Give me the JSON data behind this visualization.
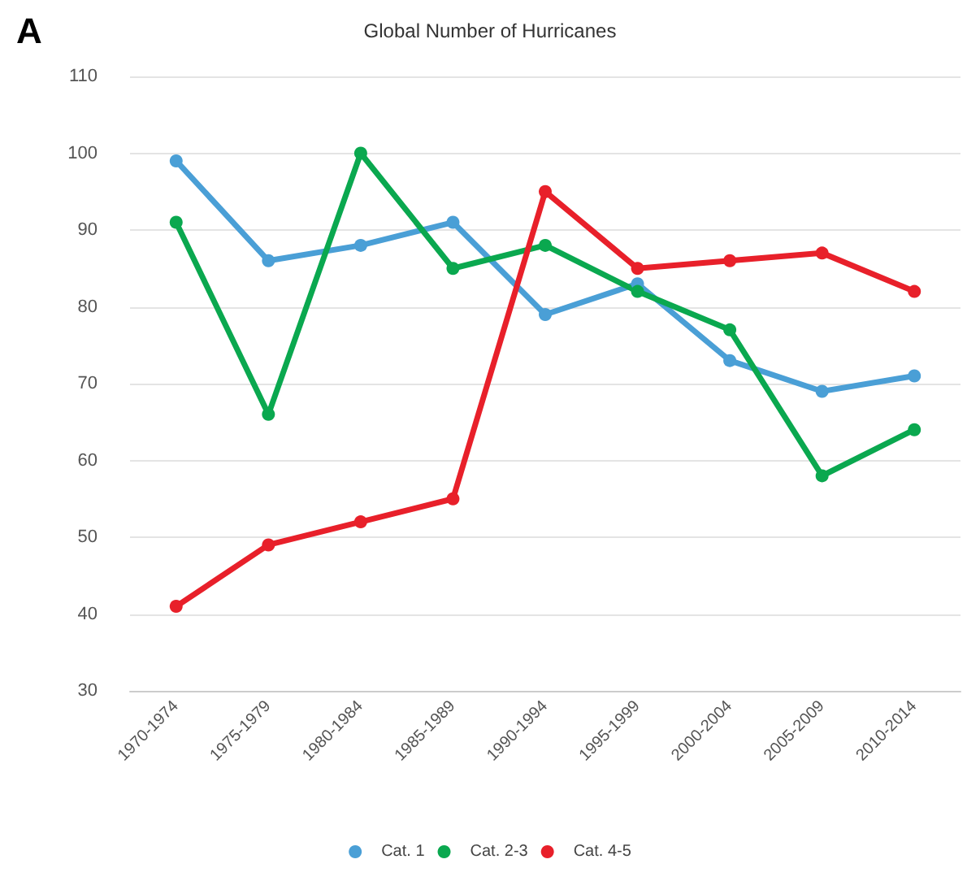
{
  "chart_data": {
    "type": "line",
    "title": "Global Number of Hurricanes",
    "annotations": [
      "A"
    ],
    "categories": [
      "1970-1974",
      "1975-1979",
      "1980-1984",
      "1985-1989",
      "1990-1994",
      "1995-1999",
      "2000-2004",
      "2005-2009",
      "2010-2014"
    ],
    "series": [
      {
        "name": "Cat. 1",
        "color": "#4a9fd6",
        "values": [
          99,
          86,
          88,
          91,
          79,
          83,
          73,
          69,
          71
        ]
      },
      {
        "name": "Cat. 2-3",
        "color": "#0aa84f",
        "values": [
          91,
          66,
          100,
          85,
          88,
          82,
          77,
          58,
          64
        ]
      },
      {
        "name": "Cat. 4-5",
        "color": "#e8202a",
        "values": [
          41,
          49,
          52,
          55,
          95,
          85,
          86,
          87,
          82
        ]
      }
    ],
    "ylim": [
      30,
      110
    ],
    "yticks": [
      30,
      40,
      50,
      60,
      70,
      80,
      90,
      100,
      110
    ],
    "grid": "y",
    "legend": "bottom",
    "marker": "circle",
    "line_style": "solid"
  }
}
